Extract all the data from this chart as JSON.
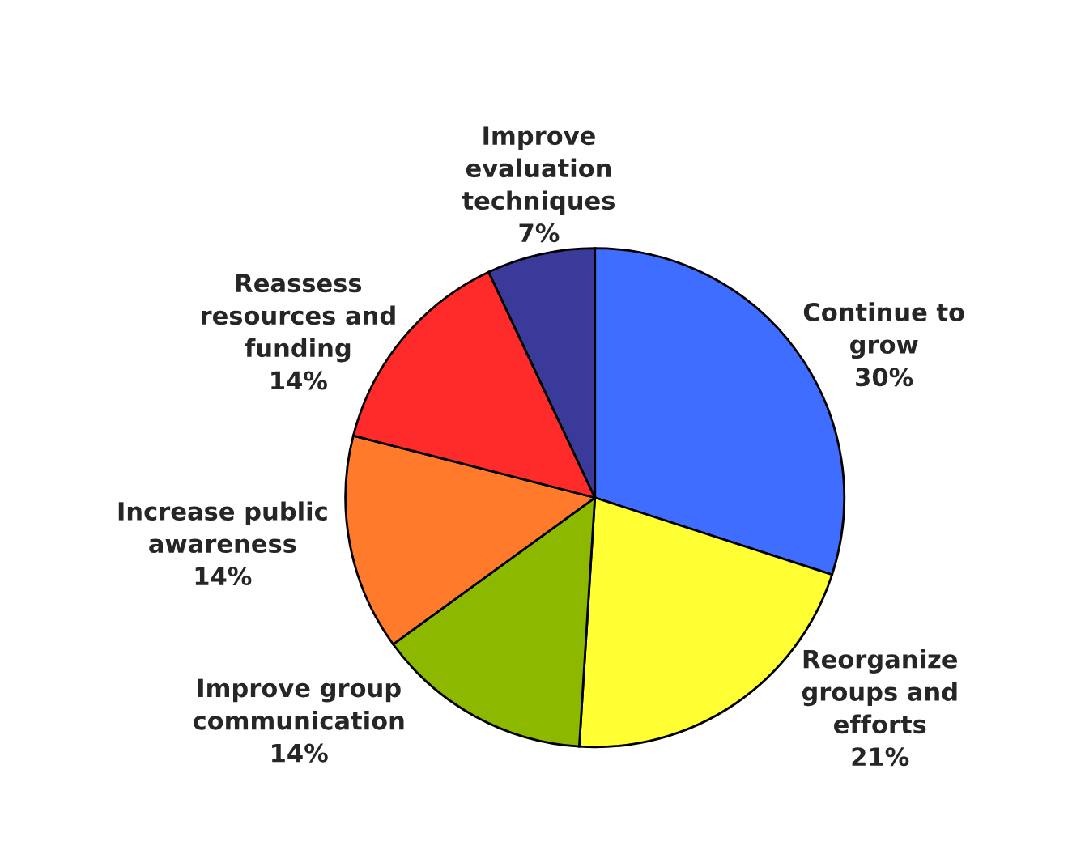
{
  "chart_data": {
    "type": "pie",
    "categories": [
      "Continue to\ngrow",
      "Reorganize\ngroups and\nefforts",
      "Improve group\ncommunication",
      "Increase public\nawareness",
      "Reassess\nresources and\nfunding",
      "Improve\nevaluation\ntechniques"
    ],
    "values": [
      30,
      21,
      14,
      14,
      14,
      7
    ],
    "value_labels": [
      "30%",
      "21%",
      "14%",
      "14%",
      "14%",
      "7%"
    ],
    "colors": [
      "#3f6dff",
      "#ffff33",
      "#8cb800",
      "#ff7a2a",
      "#ff2a2a",
      "#3a3a9a"
    ]
  }
}
